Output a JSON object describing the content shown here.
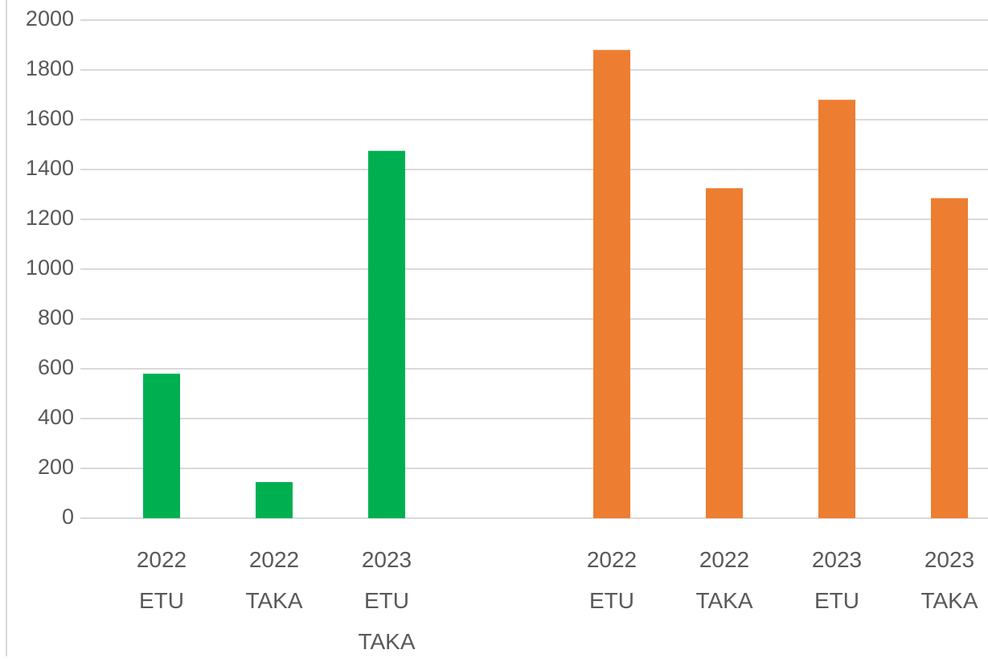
{
  "chart_data": {
    "type": "bar",
    "categories": [
      "2022 ETU",
      "2022 TAKA",
      "2023 ETU TAKA",
      null,
      "2022 ETU",
      "2022 TAKA",
      "2023 ETU",
      "2023 TAKA"
    ],
    "series": [
      {
        "color": "#00b050",
        "values": [
          580,
          145,
          1475,
          null,
          null,
          null,
          null,
          null
        ]
      },
      {
        "color": "#ed7d31",
        "values": [
          null,
          null,
          null,
          null,
          1880,
          1325,
          1680,
          1285
        ]
      }
    ],
    "ylim": [
      0,
      2000
    ],
    "yticks": [
      0,
      200,
      400,
      600,
      800,
      1000,
      1200,
      1400,
      1600,
      1800,
      2000
    ],
    "grid": true
  }
}
